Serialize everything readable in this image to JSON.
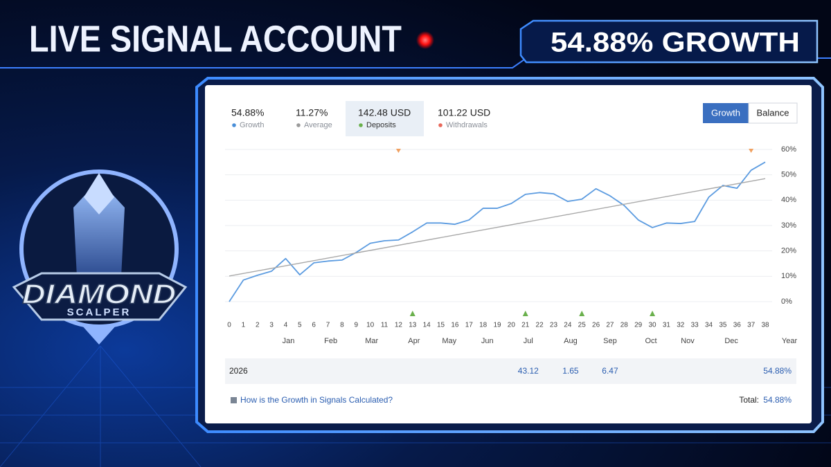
{
  "header": {
    "title": "LIVE SIGNAL ACCOUNT",
    "badge": "54.88% GROWTH"
  },
  "logo": {
    "name": "DIAMOND",
    "sub": "SCALPER"
  },
  "stats": [
    {
      "value": "54.88%",
      "label": "Growth",
      "color": "#4a8fd8"
    },
    {
      "value": "11.27%",
      "label": "Average",
      "color": "#9a9a9a"
    },
    {
      "value": "142.48 USD",
      "label": "Deposits",
      "color": "#6ab04c"
    },
    {
      "value": "101.22 USD",
      "label": "Withdrawals",
      "color": "#e8685a"
    }
  ],
  "tabs": [
    "Growth",
    "Balance"
  ],
  "chart_data": {
    "type": "line",
    "x": [
      0,
      1,
      2,
      3,
      4,
      5,
      6,
      7,
      8,
      9,
      10,
      11,
      12,
      13,
      14,
      15,
      16,
      17,
      18,
      19,
      20,
      21,
      22,
      23,
      24,
      25,
      26,
      27,
      28,
      29,
      30,
      31,
      32,
      33,
      34,
      35,
      36,
      37,
      38
    ],
    "series": [
      {
        "color": "#5b9be0",
        "values": [
          0,
          8.5,
          10.4,
          12,
          17,
          10.6,
          15.3,
          16,
          16.4,
          19.4,
          23,
          24,
          24.3,
          27.5,
          31,
          31,
          30.5,
          32.2,
          36.8,
          36.8,
          38.7,
          42.3,
          43,
          42.5,
          39.5,
          40.4,
          44.5,
          41.7,
          37.9,
          32.2,
          29.2,
          31,
          30.8,
          31.6,
          41.2,
          45.8,
          44.7,
          51.8,
          55
        ]
      },
      {
        "color": "#a8a8a8",
        "x": [
          0,
          38
        ],
        "values": [
          10.1,
          48.5
        ]
      }
    ],
    "xlim": [
      0,
      38
    ],
    "xticks": [
      0,
      1,
      2,
      3,
      4,
      5,
      6,
      7,
      8,
      9,
      10,
      11,
      12,
      13,
      14,
      15,
      16,
      17,
      18,
      19,
      20,
      21,
      22,
      23,
      24,
      25,
      26,
      27,
      28,
      29,
      30,
      31,
      32,
      33,
      34,
      35,
      36,
      37,
      38
    ],
    "month_ticks": [
      {
        "value": 4.2,
        "label": "Jan"
      },
      {
        "value": 7.2,
        "label": "Feb"
      },
      {
        "value": 10.1,
        "label": "Mar"
      },
      {
        "value": 13.1,
        "label": "Apr"
      },
      {
        "value": 15.6,
        "label": "May"
      },
      {
        "value": 18.3,
        "label": "Jun"
      },
      {
        "value": 21.2,
        "label": "Jul"
      },
      {
        "value": 24.2,
        "label": "Aug"
      },
      {
        "value": 27,
        "label": "Sep"
      },
      {
        "value": 29.9,
        "label": "Oct"
      },
      {
        "value": 32.5,
        "label": "Nov"
      },
      {
        "value": 35.6,
        "label": "Dec"
      }
    ],
    "xlabel": "Year",
    "ylim": [
      0,
      60
    ],
    "yticks": [
      {
        "value": 0,
        "label": "0%"
      },
      {
        "value": 10,
        "label": "10%"
      },
      {
        "value": 20,
        "label": "20%"
      },
      {
        "value": 30,
        "label": "30%"
      },
      {
        "value": 40,
        "label": "40%"
      },
      {
        "value": 50,
        "label": "50%"
      },
      {
        "value": 60,
        "label": "60%"
      }
    ],
    "grid": true,
    "deposit_markers": [
      13,
      21,
      25,
      30
    ],
    "withdrawal_markers": [
      12,
      37
    ]
  },
  "year_row": {
    "label": "2026",
    "values": [
      null,
      null,
      null,
      null,
      null,
      null,
      43.12,
      1.65,
      6.47,
      null,
      null,
      null
    ],
    "total": "54.88%"
  },
  "footer": {
    "link": "How is the Growth in Signals Calculated?",
    "total_label": "Total:",
    "total": "54.88%"
  }
}
